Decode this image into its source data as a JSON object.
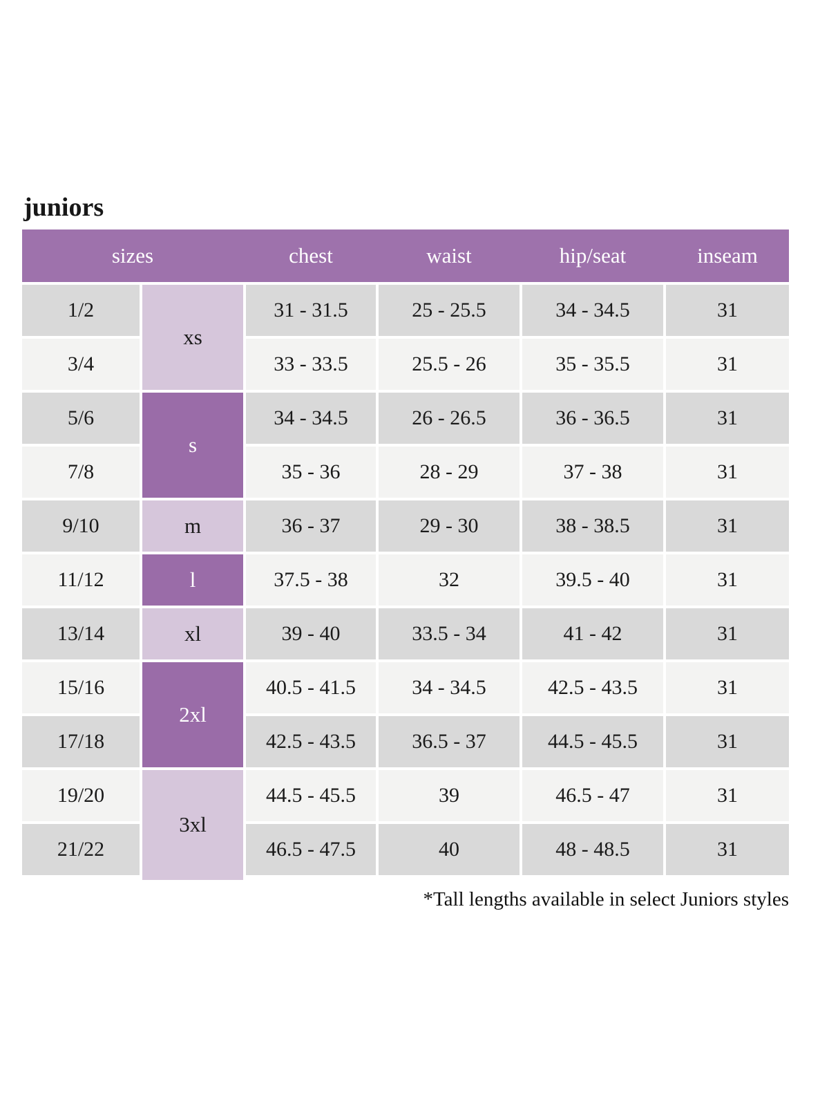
{
  "page_title": "juniors",
  "colors": {
    "header_bg": "#9e72ac",
    "header_text": "#ffffff",
    "group_dark_bg": "#9a6ca8",
    "group_dark_text": "#ffffff",
    "group_light_bg": "#d6c6db",
    "group_light_text": "#1a1a1a",
    "row_odd_bg": "#d9d9d9",
    "row_even_bg": "#f3f3f2",
    "body_text": "#1a1a1a"
  },
  "chart_data": {
    "type": "table",
    "title": "juniors",
    "columns": [
      "sizes",
      "chest",
      "waist",
      "hip/seat",
      "inseam"
    ],
    "size_groups": [
      {
        "label": "xs",
        "span": 2,
        "shade": "light"
      },
      {
        "label": "s",
        "span": 2,
        "shade": "dark"
      },
      {
        "label": "m",
        "span": 1,
        "shade": "light"
      },
      {
        "label": "l",
        "span": 1,
        "shade": "dark"
      },
      {
        "label": "xl",
        "span": 1,
        "shade": "light"
      },
      {
        "label": "2xl",
        "span": 2,
        "shade": "dark"
      },
      {
        "label": "3xl",
        "span": 2,
        "shade": "light"
      }
    ],
    "rows": [
      {
        "size": "1/2",
        "chest": "31 - 31.5",
        "waist": "25 - 25.5",
        "hip_seat": "34 - 34.5",
        "inseam": "31"
      },
      {
        "size": "3/4",
        "chest": "33 - 33.5",
        "waist": "25.5 - 26",
        "hip_seat": "35 - 35.5",
        "inseam": "31"
      },
      {
        "size": "5/6",
        "chest": "34 - 34.5",
        "waist": "26 - 26.5",
        "hip_seat": "36 - 36.5",
        "inseam": "31"
      },
      {
        "size": "7/8",
        "chest": "35 - 36",
        "waist": "28 - 29",
        "hip_seat": "37 - 38",
        "inseam": "31"
      },
      {
        "size": "9/10",
        "chest": "36 - 37",
        "waist": "29 - 30",
        "hip_seat": "38 - 38.5",
        "inseam": "31"
      },
      {
        "size": "11/12",
        "chest": "37.5 - 38",
        "waist": "32",
        "hip_seat": "39.5 - 40",
        "inseam": "31"
      },
      {
        "size": "13/14",
        "chest": "39 - 40",
        "waist": "33.5 - 34",
        "hip_seat": "41 - 42",
        "inseam": "31"
      },
      {
        "size": "15/16",
        "chest": "40.5 - 41.5",
        "waist": "34 - 34.5",
        "hip_seat": "42.5 - 43.5",
        "inseam": "31"
      },
      {
        "size": "17/18",
        "chest": "42.5 - 43.5",
        "waist": "36.5 - 37",
        "hip_seat": "44.5 - 45.5",
        "inseam": "31"
      },
      {
        "size": "19/20",
        "chest": "44.5 - 45.5",
        "waist": "39",
        "hip_seat": "46.5 - 47",
        "inseam": "31"
      },
      {
        "size": "21/22",
        "chest": "46.5 - 47.5",
        "waist": "40",
        "hip_seat": "48 - 48.5",
        "inseam": "31"
      }
    ],
    "footnote": "*Tall lengths available in select Juniors styles"
  }
}
